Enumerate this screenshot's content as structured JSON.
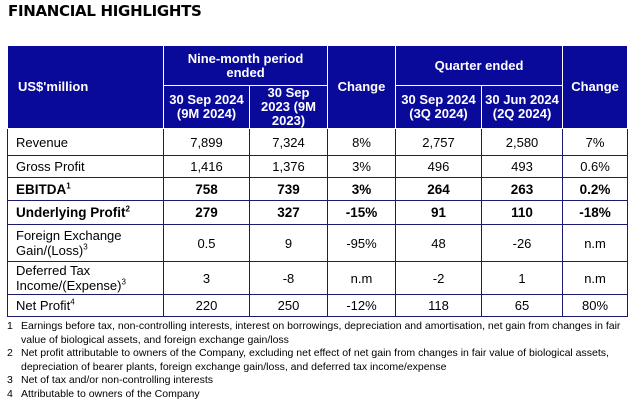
{
  "title": "FINANCIAL HIGHLIGHTS",
  "header": {
    "unit": "US$'million",
    "nine_month": "Nine-month period ended",
    "quarter": "Quarter ended",
    "change": "Change",
    "cols": [
      "30 Sep 2024 (9M 2024)",
      "30 Sep 2023 (9M 2023)",
      "30 Sep 2024 (3Q 2024)",
      "30 Jun 2024 (2Q 2024)"
    ]
  },
  "rows": [
    {
      "label": "Revenue",
      "sup": "",
      "v": [
        "7,899",
        "7,324",
        "8%",
        "2,757",
        "2,580",
        "7%"
      ]
    },
    {
      "label": "Gross Profit",
      "sup": "",
      "v": [
        "1,416",
        "1,376",
        "3%",
        "496",
        "493",
        "0.6%"
      ]
    },
    {
      "label": "EBITDA",
      "sup": "1",
      "v": [
        "758",
        "739",
        "3%",
        "264",
        "263",
        "0.2%"
      ]
    },
    {
      "label": "Underlying Profit",
      "sup": "2",
      "v": [
        "279",
        "327",
        "-15%",
        "91",
        "110",
        "-18%"
      ]
    },
    {
      "label": "Foreign Exchange Gain/(Loss)",
      "sup": "3",
      "v": [
        "0.5",
        "9",
        "-95%",
        "48",
        "-26",
        "n.m"
      ]
    },
    {
      "label": "Deferred Tax Income/(Expense)",
      "sup": "3",
      "v": [
        "3",
        "-8",
        "n.m",
        "-2",
        "1",
        "n.m"
      ]
    },
    {
      "label": "Net Profit",
      "sup": "4",
      "v": [
        "220",
        "250",
        "-12%",
        "118",
        "65",
        "80%"
      ]
    }
  ],
  "footnotes": [
    {
      "n": "1",
      "text": "Earnings before tax, non-controlling interests, interest on borrowings, depreciation and amortisation, net gain from changes in fair value of biological assets, and foreign exchange gain/loss"
    },
    {
      "n": "2",
      "text": "Net profit attributable to owners of the Company, excluding net effect of net gain from changes in fair value of biological assets, depreciation of bearer plants, foreign exchange gain/loss, and deferred tax income/expense"
    },
    {
      "n": "3",
      "text": "Net of tax and/or non-controlling interests"
    },
    {
      "n": "4",
      "text": "Attributable to owners of the Company"
    }
  ]
}
